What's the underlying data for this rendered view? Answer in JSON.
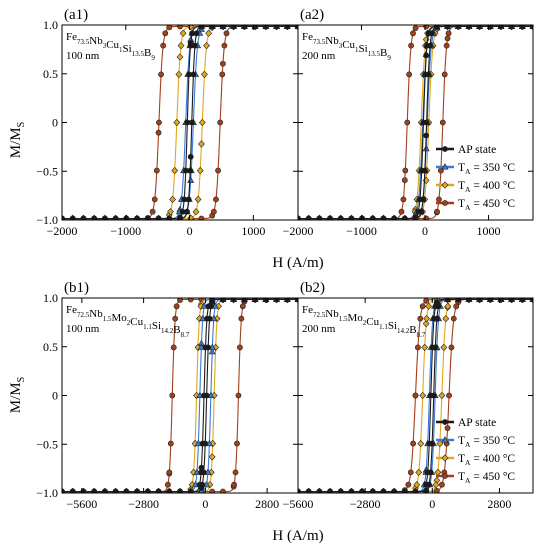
{
  "figure": {
    "ylabel": "M/M",
    "ylabel_sub": "S",
    "xlabel": "H (A/m)",
    "legend_entries": [
      {
        "label": "AP state",
        "color": "#1a1a1a",
        "marker": "circle"
      },
      {
        "label": "T",
        "sub": "A",
        "tail": " = 350 °C",
        "color": "#3a7bd5",
        "marker": "triangle"
      },
      {
        "label": "T",
        "sub": "A",
        "tail": " = 400 °C",
        "color": "#e0a81c",
        "marker": "diamond"
      },
      {
        "label": "T",
        "sub": "A",
        "tail": " = 450 °C",
        "color": "#a0401c",
        "marker": "circle"
      }
    ]
  },
  "chart_data": [
    {
      "id": "a1",
      "type": "line",
      "panel_label": "(a1)",
      "composition": [
        [
          "Fe",
          "73.5"
        ],
        [
          "Nb",
          "3"
        ],
        [
          "Cu",
          "1"
        ],
        [
          "Si",
          "13.5"
        ],
        [
          "B",
          "9"
        ]
      ],
      "thickness": "100 nm",
      "xlim": [
        -2000,
        1700
      ],
      "ylim": [
        -1.0,
        1.0
      ],
      "xticks": [
        -2000,
        -1000,
        0,
        1000
      ],
      "xtick_labels": [
        "−2000",
        "−1000",
        "0",
        "1000"
      ],
      "yticks": [
        -1.0,
        -0.5,
        0,
        0.5,
        1.0
      ],
      "ytick_labels": [
        "−1.0",
        "−0.5",
        "0",
        "0.5",
        "1.0"
      ],
      "series": [
        {
          "name": "AP state",
          "hc": 35,
          "w": 45
        },
        {
          "name": "350 °C",
          "hc": 60,
          "w": 60
        },
        {
          "name": "400 °C",
          "hc": 200,
          "w": 60
        },
        {
          "name": "450 °C",
          "hc": 480,
          "w": 60
        }
      ]
    },
    {
      "id": "a2",
      "type": "line",
      "panel_label": "(a2)",
      "composition": [
        [
          "Fe",
          "73.5"
        ],
        [
          "Nb",
          "3"
        ],
        [
          "Cu",
          "1"
        ],
        [
          "Si",
          "13.5"
        ],
        [
          "B",
          "9"
        ]
      ],
      "thickness": "200 nm",
      "xlim": [
        -2000,
        1700
      ],
      "ylim": [
        -1.0,
        1.0
      ],
      "xticks": [
        -2000,
        -1000,
        0,
        1000
      ],
      "xtick_labels": [
        "−2000",
        "−1000",
        "0",
        "1000"
      ],
      "yticks": [
        -1.0,
        -0.5,
        0,
        0.5,
        1.0
      ],
      "ytick_labels": [],
      "series": [
        {
          "name": "AP state",
          "hc": 25,
          "w": 50
        },
        {
          "name": "350 °C",
          "hc": 35,
          "w": 60
        },
        {
          "name": "400 °C",
          "hc": 60,
          "w": 60
        },
        {
          "name": "450 °C",
          "hc": 280,
          "w": 55
        }
      ]
    },
    {
      "id": "b1",
      "type": "line",
      "panel_label": "(b1)",
      "composition": [
        [
          "Fe",
          "72.5"
        ],
        [
          "Nb",
          "1.5"
        ],
        [
          "Mo",
          "2"
        ],
        [
          "Cu",
          "1.1"
        ],
        [
          "Si",
          "14.2"
        ],
        [
          "B",
          "8.7"
        ]
      ],
      "thickness": "100 nm",
      "xlim": [
        -6500,
        4200
      ],
      "ylim": [
        -1.0,
        1.0
      ],
      "xticks": [
        -5600,
        -2800,
        0,
        2800
      ],
      "xtick_labels": [
        "−5600",
        "−2800",
        "0",
        "2800"
      ],
      "yticks": [
        -1.0,
        -0.5,
        0,
        0.5,
        1.0
      ],
      "ytick_labels": [
        "−1.0",
        "−0.5",
        "0",
        "0.5",
        "1.0"
      ],
      "series": [
        {
          "name": "AP state",
          "hc": 60,
          "w": 120
        },
        {
          "name": "350 °C",
          "hc": 250,
          "w": 120
        },
        {
          "name": "400 °C",
          "hc": 400,
          "w": 120
        },
        {
          "name": "450 °C",
          "hc": 1500,
          "w": 120
        }
      ]
    },
    {
      "id": "b2",
      "type": "line",
      "panel_label": "(b2)",
      "composition": [
        [
          "Fe",
          "72.5"
        ],
        [
          "Nb",
          "1.5"
        ],
        [
          "Mo",
          "2"
        ],
        [
          "Cu",
          "1.1"
        ],
        [
          "Si",
          "14.2"
        ],
        [
          "B",
          "8.7"
        ]
      ],
      "thickness": "200 nm",
      "xlim": [
        -5600,
        4200
      ],
      "ylim": [
        -1.0,
        1.0
      ],
      "xticks": [
        -5600,
        -2800,
        0,
        2800
      ],
      "xtick_labels": [
        "−5600",
        "−2800",
        "0",
        "2800"
      ],
      "yticks": [
        -1.0,
        -0.5,
        0,
        0.5,
        1.0
      ],
      "ytick_labels": [],
      "series": [
        {
          "name": "AP state",
          "hc": 60,
          "w": 120
        },
        {
          "name": "350 °C",
          "hc": 120,
          "w": 130
        },
        {
          "name": "400 °C",
          "hc": 400,
          "w": 150
        },
        {
          "name": "450 °C",
          "hc": 700,
          "w": 180
        }
      ]
    }
  ]
}
